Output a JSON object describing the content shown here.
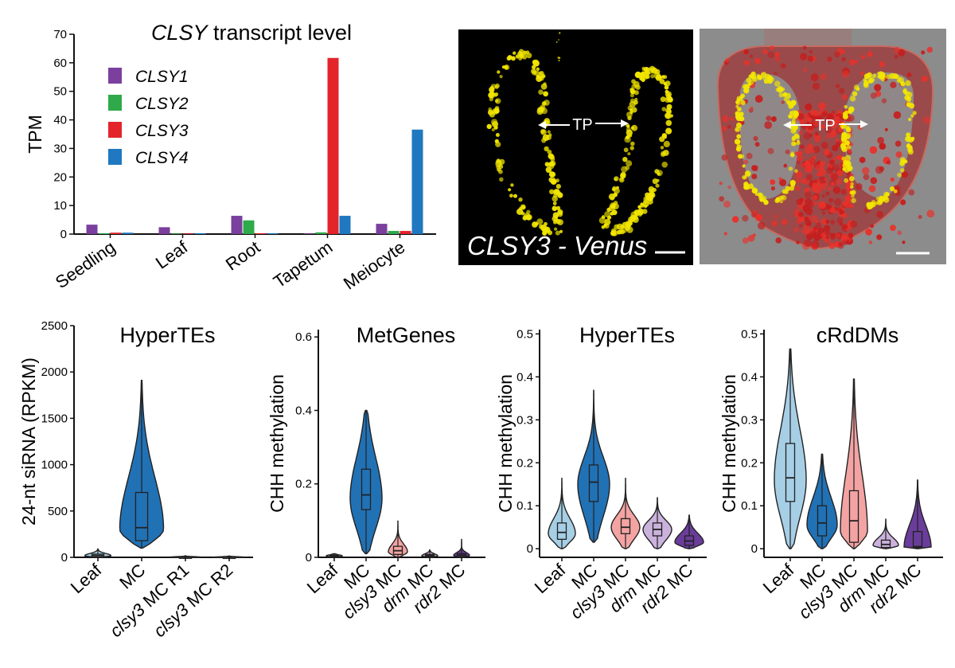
{
  "colors": {
    "clsy1": "#7b3f9e",
    "clsy2": "#2eaa4a",
    "clsy3": "#e3242b",
    "clsy4": "#1f78c0",
    "leaf": "#a6cfe6",
    "mc": "#2171b5",
    "clsy3_mc": "#f4a3a3",
    "drm_mc": "#cbb2dd",
    "rdr2_mc": "#6a3d9a"
  },
  "micrographs": {
    "fluor_label": "CLSY3 - Venus",
    "tp_label": "TP"
  },
  "chart_data": [
    {
      "type": "bar",
      "title_italic": "CLSY",
      "title_rest": " transcript level",
      "ylabel": "TPM",
      "ylim": [
        0,
        70
      ],
      "yticks": [
        0,
        10,
        20,
        30,
        40,
        50,
        60,
        70
      ],
      "categories": [
        "Seedling",
        "Leaf",
        "Root",
        "Tapetum",
        "Meiocyte"
      ],
      "series": [
        {
          "name": "CLSY1",
          "color": "#7b3f9e",
          "values": [
            3.3,
            2.4,
            6.4,
            0.2,
            3.6
          ]
        },
        {
          "name": "CLSY2",
          "color": "#2eaa4a",
          "values": [
            0.3,
            0.2,
            4.8,
            0.6,
            1.1
          ]
        },
        {
          "name": "CLSY3",
          "color": "#e3242b",
          "values": [
            0.5,
            0.2,
            0.3,
            61.7,
            1.1
          ]
        },
        {
          "name": "CLSY4",
          "color": "#1f78c0",
          "values": [
            0.5,
            0.3,
            0.3,
            6.4,
            36.6
          ]
        }
      ],
      "legend_position": "top-left"
    },
    {
      "type": "violin",
      "title": "HyperTEs",
      "ylabel": "24-nt siRNA (RPKM)",
      "ylim": [
        0,
        2500
      ],
      "yticks": [
        0,
        500,
        1000,
        1500,
        2000,
        2500
      ],
      "categories": [
        {
          "italic": "",
          "rest": "Leaf"
        },
        {
          "italic": "",
          "rest": "MC"
        },
        {
          "italic": "clsy3",
          "rest": " MC R1"
        },
        {
          "italic": "clsy3",
          "rest": " MC R2"
        }
      ],
      "groups": [
        {
          "color": "#a6cfe6",
          "min": 0,
          "max": 90,
          "q1": 5,
          "median": 20,
          "q3": 35,
          "mode": 18,
          "spread": 0.6
        },
        {
          "color": "#2171b5",
          "min": 100,
          "max": 1910,
          "q1": 180,
          "median": 320,
          "q3": 700,
          "mode": 300,
          "spread": 1.0
        },
        {
          "color": "#f4a3a3",
          "min": 0,
          "max": 20,
          "q1": 0,
          "median": 3,
          "q3": 6,
          "mode": 3,
          "spread": 0.7
        },
        {
          "color": "#f4a3a3",
          "min": 0,
          "max": 15,
          "q1": 0,
          "median": 2,
          "q3": 5,
          "mode": 2,
          "spread": 0.7
        }
      ]
    },
    {
      "type": "violin",
      "title": "MetGenes",
      "ylabel": "CHH methylation",
      "ylim": [
        0,
        0.62
      ],
      "yticks": [
        0,
        0.2,
        0.4,
        0.6
      ],
      "ytick_labels": [
        "0",
        "0.2",
        "0.4",
        "0.6"
      ],
      "categories": [
        {
          "italic": "",
          "rest": "Leaf"
        },
        {
          "italic": "",
          "rest": "MC"
        },
        {
          "italic": "clsy3",
          "rest": " MC"
        },
        {
          "italic": "drm",
          "rest": " MC"
        },
        {
          "italic": "rdr2",
          "rest": " MC"
        }
      ],
      "groups": [
        {
          "color": "#a6cfe6",
          "min": 0,
          "max": 0.01,
          "q1": 0.002,
          "median": 0.004,
          "q3": 0.006,
          "mode": 0.004,
          "spread": 0.5
        },
        {
          "color": "#2171b5",
          "min": 0.01,
          "max": 0.4,
          "q1": 0.13,
          "median": 0.17,
          "q3": 0.24,
          "mode": 0.16,
          "spread": 1.0
        },
        {
          "color": "#f4a3a3",
          "min": 0,
          "max": 0.1,
          "q1": 0.008,
          "median": 0.018,
          "q3": 0.03,
          "mode": 0.015,
          "spread": 0.6
        },
        {
          "color": "#cbb2dd",
          "min": 0,
          "max": 0.02,
          "q1": 0.002,
          "median": 0.005,
          "q3": 0.008,
          "mode": 0.004,
          "spread": 0.5
        },
        {
          "color": "#6a3d9a",
          "min": 0,
          "max": 0.05,
          "q1": 0.002,
          "median": 0.006,
          "q3": 0.01,
          "mode": 0.005,
          "spread": 0.5
        }
      ]
    },
    {
      "type": "violin",
      "title": "HyperTEs",
      "ylabel": "CHH methylation",
      "ylim": [
        -0.02,
        0.51
      ],
      "yticks": [
        0,
        0.1,
        0.2,
        0.3,
        0.4,
        0.5
      ],
      "ytick_labels": [
        "0",
        "0.1",
        "0.2",
        "0.3",
        "0.4",
        "0.5"
      ],
      "categories": [
        {
          "italic": "",
          "rest": "Leaf"
        },
        {
          "italic": "",
          "rest": "MC"
        },
        {
          "italic": "clsy3",
          "rest": " MC"
        },
        {
          "italic": "drm",
          "rest": " MC"
        },
        {
          "italic": "rdr2",
          "rest": " MC"
        }
      ],
      "groups": [
        {
          "color": "#a6cfe6",
          "min": 0,
          "max": 0.165,
          "q1": 0.022,
          "median": 0.038,
          "q3": 0.06,
          "mode": 0.035,
          "spread": 0.85
        },
        {
          "color": "#2171b5",
          "min": 0.015,
          "max": 0.37,
          "q1": 0.11,
          "median": 0.155,
          "q3": 0.195,
          "mode": 0.15,
          "spread": 1.0
        },
        {
          "color": "#f4a3a3",
          "min": 0,
          "max": 0.165,
          "q1": 0.035,
          "median": 0.05,
          "q3": 0.07,
          "mode": 0.05,
          "spread": 0.9
        },
        {
          "color": "#cbb2dd",
          "min": 0,
          "max": 0.12,
          "q1": 0.03,
          "median": 0.045,
          "q3": 0.06,
          "mode": 0.045,
          "spread": 0.9
        },
        {
          "color": "#6a3d9a",
          "min": 0,
          "max": 0.078,
          "q1": 0.008,
          "median": 0.018,
          "q3": 0.03,
          "mode": 0.015,
          "spread": 0.9
        }
      ]
    },
    {
      "type": "violin",
      "title": "cRdDMs",
      "ylabel": "CHH methylation",
      "ylim": [
        -0.02,
        0.51
      ],
      "yticks": [
        0,
        0.1,
        0.2,
        0.3,
        0.4,
        0.5
      ],
      "ytick_labels": [
        "0",
        "0.1",
        "0.2",
        "0.3",
        "0.4",
        "0.5"
      ],
      "categories": [
        {
          "italic": "",
          "rest": "Leaf"
        },
        {
          "italic": "",
          "rest": "MC"
        },
        {
          "italic": "clsy3",
          "rest": " MC"
        },
        {
          "italic": "drm",
          "rest": " MC"
        },
        {
          "italic": "rdr2",
          "rest": " MC"
        }
      ],
      "groups": [
        {
          "color": "#a6cfe6",
          "min": 0,
          "max": 0.465,
          "q1": 0.11,
          "median": 0.165,
          "q3": 0.245,
          "mode": 0.16,
          "spread": 1.0
        },
        {
          "color": "#2171b5",
          "min": 0,
          "max": 0.22,
          "q1": 0.03,
          "median": 0.06,
          "q3": 0.1,
          "mode": 0.055,
          "spread": 0.95
        },
        {
          "color": "#f4a3a3",
          "min": 0,
          "max": 0.395,
          "q1": 0.015,
          "median": 0.065,
          "q3": 0.135,
          "mode": 0.04,
          "spread": 0.85
        },
        {
          "color": "#cbb2dd",
          "min": 0,
          "max": 0.07,
          "q1": 0.003,
          "median": 0.01,
          "q3": 0.02,
          "mode": 0.008,
          "spread": 0.8
        },
        {
          "color": "#6a3d9a",
          "min": 0,
          "max": 0.16,
          "q1": 0.002,
          "median": 0.005,
          "q3": 0.04,
          "mode": 0.003,
          "spread": 0.85
        }
      ]
    }
  ]
}
